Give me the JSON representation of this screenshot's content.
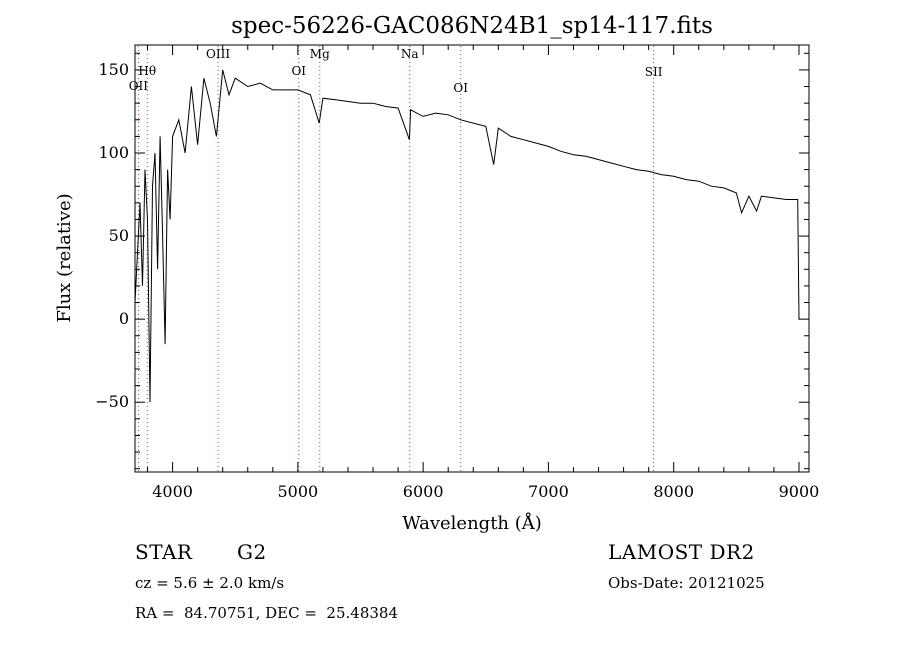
{
  "chart_data": {
    "type": "line",
    "title": "spec-56226-GAC086N24B1_sp14-117.fits",
    "xlabel": "Wavelength (Å)",
    "ylabel": "Flux (relative)",
    "xlim": [
      3700,
      9080
    ],
    "ylim": [
      -92,
      165
    ],
    "xticks": [
      4000,
      5000,
      6000,
      7000,
      8000,
      9000
    ],
    "xtick_labels": [
      "4000",
      "5000",
      "6000",
      "7000",
      "8000",
      "9000"
    ],
    "yticks": [
      -50,
      0,
      50,
      100,
      150
    ],
    "ytick_labels": [
      "−50",
      "0",
      "50",
      "100",
      "150"
    ],
    "grid": false,
    "series": [
      {
        "x": [
          3700,
          3720,
          3740,
          3760,
          3780,
          3800,
          3820,
          3840,
          3860,
          3880,
          3900,
          3920,
          3940,
          3960,
          3980,
          4000,
          4050,
          4100,
          4150,
          4200,
          4250,
          4300,
          4350,
          4400,
          4450,
          4500,
          4600,
          4700,
          4800,
          4900,
          5000,
          5100,
          5170,
          5200,
          5300,
          5400,
          5500,
          5600,
          5700,
          5800,
          5890,
          5900,
          6000,
          6100,
          6200,
          6300,
          6400,
          6500,
          6563,
          6600,
          6700,
          6800,
          6900,
          7000,
          7100,
          7200,
          7300,
          7400,
          7500,
          7600,
          7700,
          7800,
          7900,
          8000,
          8100,
          8200,
          8300,
          8400,
          8500,
          8542,
          8600,
          8662,
          8700,
          8800,
          8900,
          8990,
          9000,
          9010
        ],
        "y": [
          10,
          40,
          70,
          20,
          90,
          60,
          -50,
          80,
          100,
          30,
          110,
          50,
          -15,
          90,
          60,
          110,
          120,
          100,
          140,
          105,
          145,
          130,
          110,
          150,
          135,
          145,
          140,
          142,
          138,
          138,
          138,
          135,
          118,
          133,
          132,
          131,
          130,
          130,
          128,
          127,
          108,
          126,
          122,
          124,
          123,
          120,
          118,
          116,
          93,
          115,
          110,
          108,
          106,
          104,
          101,
          99,
          98,
          96,
          94,
          92,
          90,
          89,
          87,
          86,
          84,
          83,
          80,
          79,
          76,
          64,
          74,
          65,
          74,
          73,
          72,
          72,
          0,
          0
        ]
      }
    ],
    "line_color": "#000000",
    "annotation_color": "#cc3333",
    "annotations": [
      {
        "label": "OII",
        "wavelength": 3727
      },
      {
        "label": "Hθ",
        "wavelength": 3798
      },
      {
        "label": "OIII",
        "wavelength": 4363
      },
      {
        "label": "OI",
        "wavelength": 5007
      },
      {
        "label": "Mg",
        "wavelength": 5175
      },
      {
        "label": "Na",
        "wavelength": 5893
      },
      {
        "label": "OI",
        "wavelength": 6300
      },
      {
        "label": "SII",
        "wavelength": 7840
      }
    ]
  },
  "info": {
    "class_label": "STAR",
    "subclass_label": "G2",
    "cz_text": "cz = 5.6 ± 2.0 km/s",
    "coords_text": "RA =  84.70751, DEC =  25.48384",
    "survey_label": "LAMOST DR2",
    "obs_date_text": "Obs-Date: 20121025"
  }
}
